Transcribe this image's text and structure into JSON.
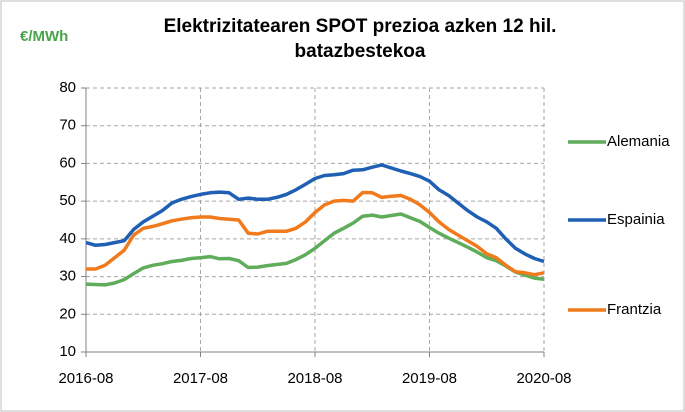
{
  "chart_data": {
    "type": "line",
    "title": "Elektrizitatearen SPOT prezioa azken 12 hil. batazbestekoa",
    "y_label": "€/MWh",
    "x": [
      "2016-08",
      "2016-09",
      "2016-10",
      "2016-11",
      "2016-12",
      "2017-01",
      "2017-02",
      "2017-03",
      "2017-04",
      "2017-05",
      "2017-06",
      "2017-07",
      "2017-08",
      "2017-09",
      "2017-10",
      "2017-11",
      "2017-12",
      "2018-01",
      "2018-02",
      "2018-03",
      "2018-04",
      "2018-05",
      "2018-06",
      "2018-07",
      "2018-08",
      "2018-09",
      "2018-10",
      "2018-11",
      "2018-12",
      "2019-01",
      "2019-02",
      "2019-03",
      "2019-04",
      "2019-05",
      "2019-06",
      "2019-07",
      "2019-08",
      "2019-09",
      "2019-10",
      "2019-11",
      "2019-12",
      "2020-01",
      "2020-02",
      "2020-03",
      "2020-04",
      "2020-05",
      "2020-06",
      "2020-07",
      "2020-08"
    ],
    "series": [
      {
        "name": "Alemania",
        "color": "#5fac5a",
        "values": [
          28,
          27.9,
          27.8,
          28.3,
          29.2,
          30.8,
          32.3,
          33,
          33.4,
          34,
          34.3,
          34.8,
          35,
          35.3,
          34.7,
          34.8,
          34.2,
          32.4,
          32.5,
          32.9,
          33.2,
          33.5,
          34.5,
          35.8,
          37.5,
          39.5,
          41.5,
          42.8,
          44.2,
          46,
          46.3,
          45.8,
          46.2,
          46.6,
          45.6,
          44.6,
          43,
          41.5,
          40.2,
          39,
          37.8,
          36.5,
          35,
          34.2,
          32.8,
          31.2,
          30.4,
          29.6,
          29.3
        ]
      },
      {
        "name": "Espainia",
        "color": "#1f5fb4",
        "values": [
          39,
          38.3,
          38.5,
          39,
          39.5,
          42.5,
          44.5,
          46,
          47.5,
          49.5,
          50.5,
          51.2,
          51.8,
          52.2,
          52.4,
          52.2,
          50.5,
          50.8,
          50.5,
          50.5,
          51,
          51.8,
          53,
          54.5,
          56,
          56.8,
          57,
          57.3,
          58.2,
          58.3,
          59,
          59.6,
          58.8,
          58,
          57.3,
          56.5,
          55.3,
          53,
          51.5,
          49.5,
          47.5,
          45.8,
          44.5,
          42.8,
          40,
          37.5,
          36,
          34.8,
          34
        ]
      },
      {
        "name": "Frantzia",
        "color": "#f07a1c",
        "values": [
          32,
          32,
          33,
          35,
          37,
          41,
          42.8,
          43.3,
          44,
          44.8,
          45.2,
          45.6,
          45.8,
          45.8,
          45.4,
          45.2,
          45,
          41.5,
          41.3,
          42,
          42,
          42,
          42.8,
          44.5,
          47,
          49,
          50,
          50.2,
          50,
          52.3,
          52.2,
          51,
          51.3,
          51.5,
          50.5,
          49,
          47,
          44.5,
          42.5,
          41,
          39.5,
          38,
          36,
          35,
          33,
          31.3,
          31,
          30.5,
          31
        ]
      }
    ],
    "xlim": [
      "2016-08",
      "2020-08"
    ],
    "xticks": [
      "2016-08",
      "2017-08",
      "2018-08",
      "2019-08",
      "2020-08"
    ],
    "ylim": [
      10,
      80
    ],
    "yticks": [
      10,
      20,
      30,
      40,
      50,
      60,
      70,
      80
    ],
    "grid": true,
    "legend": "right"
  }
}
